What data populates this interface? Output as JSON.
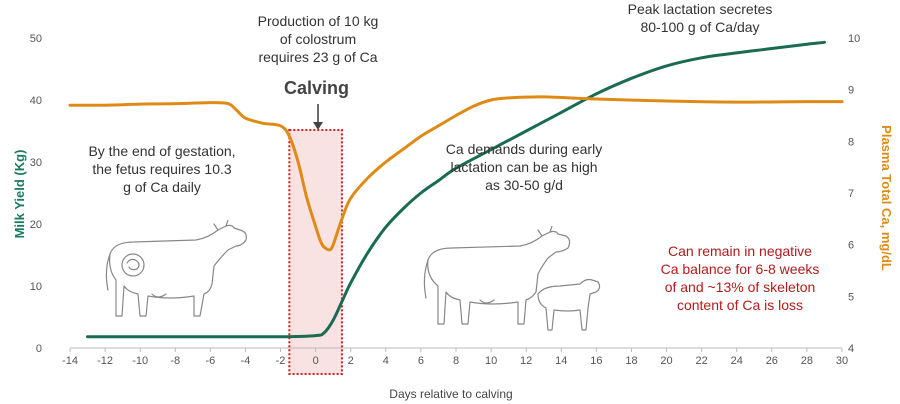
{
  "chart_data": {
    "type": "line",
    "xlabel": "Days relative to calving",
    "ylabel_left": "Milk Yield (Kg)",
    "ylabel_right": "Plasma Total Ca, mg/dL",
    "xlim": [
      -14,
      30
    ],
    "ylim_left": [
      0,
      50
    ],
    "ylim_right": [
      4,
      10
    ],
    "x_ticks": [
      -14,
      -12,
      -10,
      -8,
      -6,
      -4,
      -2,
      0,
      2,
      4,
      6,
      8,
      10,
      12,
      14,
      16,
      18,
      20,
      22,
      24,
      26,
      28,
      30
    ],
    "y_ticks_left": [
      0,
      10,
      20,
      30,
      40,
      50
    ],
    "y_ticks_right": [
      4,
      5,
      6,
      7,
      8,
      9,
      10
    ],
    "grid": false,
    "series": [
      {
        "axis": "left",
        "color": "#1a6b52",
        "x": [
          -13,
          -6,
          -2,
          0,
          0.5,
          1,
          1.5,
          2,
          3,
          4,
          5,
          6,
          7,
          8,
          10,
          12,
          14,
          16,
          18,
          20,
          22,
          24,
          26,
          28,
          29
        ],
        "y": [
          1.8,
          1.8,
          1.8,
          2.0,
          2.5,
          4.5,
          7.5,
          10.5,
          15.5,
          19.5,
          22.5,
          25,
          27,
          29,
          32,
          35,
          38,
          41,
          43.5,
          45.5,
          46.8,
          47.6,
          48.3,
          49,
          49.3
        ]
      },
      {
        "axis": "right",
        "color": "#e08a16",
        "x": [
          -14,
          -12,
          -10,
          -8,
          -6,
          -5,
          -4.5,
          -4,
          -3,
          -2,
          -1.5,
          -1,
          -0.5,
          0,
          0.3,
          0.5,
          0.8,
          1,
          1.5,
          2,
          3,
          4,
          5,
          6,
          7,
          8,
          9,
          10,
          11,
          13,
          16,
          20,
          24,
          28,
          30
        ],
        "y": [
          8.7,
          8.7,
          8.72,
          8.73,
          8.75,
          8.73,
          8.6,
          8.45,
          8.35,
          8.3,
          8.1,
          7.6,
          6.9,
          6.35,
          6.05,
          5.95,
          5.9,
          6.0,
          6.5,
          6.9,
          7.3,
          7.6,
          7.85,
          8.1,
          8.3,
          8.5,
          8.68,
          8.8,
          8.84,
          8.86,
          8.82,
          8.78,
          8.76,
          8.77,
          8.77
        ]
      }
    ],
    "calving_window": [
      -1.5,
      1.5
    ]
  },
  "annotations": {
    "calving": "Calving",
    "colostrum": [
      "Production of 10 kg",
      "of colostrum",
      "requires 23 g of Ca"
    ],
    "peak": [
      "Peak lactation secretes",
      "80-100 g of Ca/day"
    ],
    "gestation": [
      "By the end of gestation,",
      "the fetus requires 10.3",
      "g of Ca daily"
    ],
    "early_lactation": [
      "Ca demands during early",
      "lactation can be as high",
      "as 30-50 g/d"
    ],
    "negative_balance": [
      "Can remain in negative",
      "Ca balance for 6-8 weeks",
      "of and ~13% of skeleton",
      "content of Ca is loss"
    ]
  }
}
